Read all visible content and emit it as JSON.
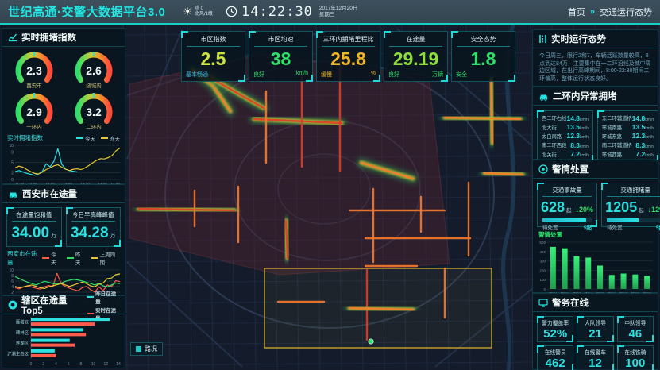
{
  "header": {
    "title": "世纪高通·交警大数据平台3.0",
    "weather_line1": "晴 0",
    "weather_line2": "北风/1级",
    "time": "14:22:30",
    "date": "2017年12月20日",
    "weekday": "星期三",
    "nav": {
      "home": "首页",
      "separator": "»",
      "current": "交通运行态势"
    }
  },
  "kpis": [
    {
      "label": "市区指数",
      "value": "2.5",
      "status": "基本畅通",
      "unit": ""
    },
    {
      "label": "市区均速",
      "value": "38",
      "status": "良好",
      "unit": "km/h"
    },
    {
      "label": "三环内拥堵里程比",
      "value": "25.8",
      "status": "缓慢",
      "unit": "%"
    },
    {
      "label": "在途量",
      "value": "29.19",
      "status": "良好",
      "unit": "万辆"
    },
    {
      "label": "安全态势",
      "value": "1.8",
      "status": "安全",
      "unit": ""
    }
  ],
  "congestion_panel": {
    "title": "实时拥堵指数",
    "gauges": [
      {
        "value": "2.3",
        "label": "西安市"
      },
      {
        "value": "2.6",
        "label": "绕城内"
      },
      {
        "value": "2.9",
        "label": "一环内"
      },
      {
        "value": "3.2",
        "label": "二环内"
      }
    ],
    "trend": {
      "type": "line",
      "title": "实时拥堵指数",
      "legend": [
        {
          "name": "今天",
          "color": "#2de0e0"
        },
        {
          "name": "昨天",
          "color": "#e8c832"
        }
      ],
      "x_labels": [
        "11:30",
        "12:00",
        "12:30",
        "13:00",
        "13:30",
        "14:00",
        "14:30"
      ],
      "y_ticks": [
        10,
        8,
        5,
        2,
        0
      ],
      "ylim": [
        0,
        10
      ],
      "points": 28,
      "series": [
        {
          "name": "今天",
          "color": "#2de0e0",
          "values": [
            2.3,
            2.6,
            2.2,
            1.8,
            1.5,
            1.2,
            1.6,
            2.3,
            4.6,
            3.7,
            5.3,
            9.0,
            4.5,
            3.0,
            2.6,
            2.4,
            2.2
          ]
        },
        {
          "name": "昨天",
          "color": "#e8c832",
          "values": [
            3.4,
            3.9,
            3.6,
            2.9,
            2.3,
            1.8,
            1.6,
            2.1,
            2.9,
            3.4,
            4.0,
            4.3,
            3.6,
            3.0,
            2.6,
            3.0,
            3.1,
            2.9,
            3.4,
            4.1,
            4.9,
            5.6,
            6.1,
            6.0,
            6.4,
            7.0,
            8.4,
            9.2
          ]
        }
      ]
    }
  },
  "ontheway_panel": {
    "title": "西安市在途量",
    "boxes": [
      {
        "label": "在途量饱和值",
        "value": "34.00",
        "unit": "万"
      },
      {
        "label": "今日早高峰峰值",
        "value": "34.28",
        "unit": "万"
      }
    ],
    "chart": {
      "type": "line",
      "title": "西安市在途量",
      "legend": [
        {
          "name": "今天",
          "color": "#ff5a4a"
        },
        {
          "name": "昨天",
          "color": "#2ee06a"
        },
        {
          "name": "上周同期",
          "color": "#e8c832"
        }
      ],
      "x_labels": [
        "11:30",
        "12:00",
        "12:30",
        "13:00",
        "13:30",
        "14:00",
        "14:30"
      ],
      "y_ticks": [
        10,
        8,
        6,
        4,
        2,
        0
      ],
      "ylim": [
        0,
        10
      ],
      "points": 26,
      "series": [
        {
          "name": "今天",
          "color": "#ff5a4a",
          "values": [
            3.6,
            3.2,
            3.9,
            4.3,
            3.8,
            3.4,
            3.1,
            3.9,
            4.4,
            4.0,
            8.8,
            5.0,
            4.0,
            3.4,
            2.9,
            2.5,
            3.6,
            4.1,
            2.9,
            2.1,
            3.9,
            2.6,
            4.6,
            4.0,
            6.1,
            5.8
          ]
        },
        {
          "name": "昨天",
          "color": "#2ee06a",
          "values": [
            7.6,
            6.9,
            6.2,
            5.6,
            5.1,
            4.6,
            5.3,
            5.9,
            5.6,
            5.1,
            4.9,
            5.3,
            5.9,
            6.3,
            6.6,
            6.4,
            6.0,
            5.6,
            5.1,
            4.6,
            5.1,
            4.3,
            3.9,
            4.6,
            5.3,
            5.1
          ]
        },
        {
          "name": "上周同期",
          "color": "#e8c832",
          "values": [
            4.1,
            3.6,
            3.9,
            4.3,
            4.6,
            4.1,
            3.6,
            3.3,
            3.9,
            4.3,
            4.7,
            5.1,
            4.6,
            4.1,
            4.6,
            5.1,
            5.6,
            5.1,
            4.3,
            3.9,
            4.9,
            5.3,
            6.9,
            7.1,
            8.3,
            8.6
          ]
        }
      ]
    }
  },
  "top5_panel": {
    "title": "辖区在途量Top5",
    "legend": [
      {
        "name": "昨日在途量",
        "color": "#2de0e0"
      },
      {
        "name": "实时在途量",
        "color": "#ff5a4a"
      }
    ],
    "chart": {
      "type": "bar",
      "categories": [
        "雁塔区",
        "碑林区",
        "莲湖区",
        "浐灞生态区"
      ],
      "x_ticks": [
        0,
        2,
        4,
        6,
        8,
        10,
        12,
        14
      ],
      "xlim": [
        0,
        14
      ],
      "series": [
        {
          "name": "昨日在途量",
          "color": "#2de0e0",
          "values": [
            12.6,
            8.4,
            6.2,
            3.8
          ]
        },
        {
          "name": "实时在途量",
          "color": "#ff5a4a",
          "values": [
            10.2,
            8.8,
            7.0,
            4.0
          ]
        }
      ]
    }
  },
  "runtime_panel": {
    "title": "实时运行态势",
    "text": "今日周三，限行2和7，车辆活跃数量较高，8点到达84万，主要集中在一二环沿线及城中周边区域，在出行高峰期间，8:00-22:30期间二环偏高，整体运行状态良好。"
  },
  "abnormal_panel": {
    "title": "二环内异常拥堵",
    "unit": "km/h",
    "left_rows": [
      {
        "road": "西二环右线",
        "speed": "14.8"
      },
      {
        "road": "北大街",
        "speed": "13.5"
      },
      {
        "road": "太白南路",
        "speed": "12.3"
      },
      {
        "road": "南二环西段",
        "speed": "8.3"
      },
      {
        "road": "北关街",
        "speed": "7.2"
      }
    ],
    "right_rows": [
      {
        "road": "东二环辅道桥",
        "speed": "14.8"
      },
      {
        "road": "环城南路",
        "speed": "13.5"
      },
      {
        "road": "环城东路",
        "speed": "12.3"
      },
      {
        "road": "南二环辅道桥",
        "speed": "8.3"
      },
      {
        "road": "环城西路",
        "speed": "7.2"
      }
    ]
  },
  "incidents_panel": {
    "title": "警情处置",
    "cards": [
      {
        "label": "交通事故量",
        "value": "628",
        "unit": "起",
        "delta": "↓20%",
        "pending_label": "待处置",
        "pending_value": "5起",
        "progress": 88
      },
      {
        "label": "交通拥堵量",
        "value": "1205",
        "unit": "起",
        "delta": "↓12%",
        "pending_label": "待处置",
        "pending_value": "5起",
        "progress": 55
      }
    ],
    "chart": {
      "type": "bar",
      "title": "警情处置",
      "categories": [
        "辖区1",
        "辖区2",
        "辖区3",
        "辖区4",
        "辖区5",
        "辖区6",
        "辖区7",
        "辖区8",
        "辖区9"
      ],
      "values": [
        450,
        435,
        350,
        335,
        250,
        150,
        165,
        155,
        140
      ],
      "y_ticks": [
        500,
        400,
        300,
        200,
        100,
        0
      ],
      "ylim": [
        0,
        500
      ],
      "bar_color": "#2ee06a"
    }
  },
  "police_panel": {
    "title": "警务在线",
    "stats": [
      {
        "label": "警力覆盖率",
        "value": "52%"
      },
      {
        "label": "大队领导",
        "value": "21"
      },
      {
        "label": "中队领导",
        "value": "46"
      },
      {
        "label": "在线警员",
        "value": "462"
      },
      {
        "label": "在线警车",
        "value": "12"
      },
      {
        "label": "在线铁骑",
        "value": "100"
      }
    ]
  },
  "map": {
    "control_label": "路况"
  },
  "colors": {
    "accent": "#1fd8d8",
    "green": "#2ee06a",
    "yellow": "#e8c832",
    "orange": "#f5a623",
    "red": "#ff5a3c",
    "cyan_value": "#2de0e0"
  }
}
